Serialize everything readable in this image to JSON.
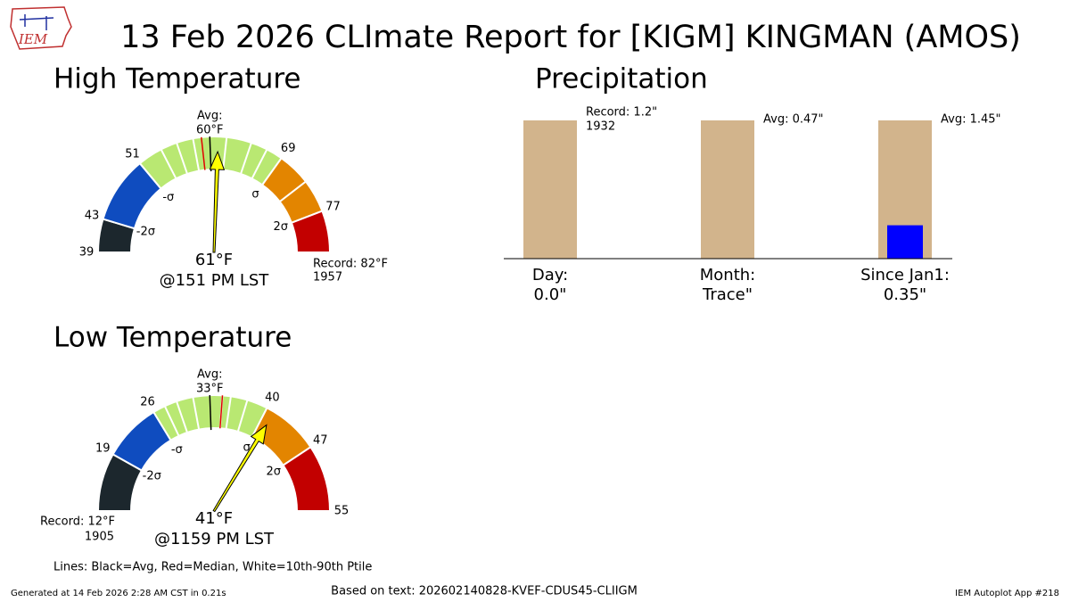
{
  "title": "13 Feb 2026 CLImate Report for [KIGM] KINGMAN (AMOS)",
  "logo": "IEM",
  "note": "Lines: Black=Avg, Red=Median, White=10th-90th Ptile",
  "footer_left": "Generated at 14 Feb 2026 2:28 AM CST in 0.21s",
  "footer_center": "Based on text: 202602140828-KVEF-CDUS45-CLIIGM",
  "footer_right": "IEM Autoplot App #218",
  "chart_data": [
    {
      "type": "gauge",
      "title": "High Temperature",
      "range": [
        39,
        82
      ],
      "ticks": [
        39,
        43,
        51,
        69,
        77
      ],
      "bands": [
        {
          "from": 39,
          "to": 43,
          "color": "#1c272d"
        },
        {
          "from": 43,
          "to": 51,
          "color": "#0f4cbf"
        },
        {
          "from": 51,
          "to": 69,
          "color": "#b9e872"
        },
        {
          "from": 69,
          "to": 77,
          "color": "#e38500"
        },
        {
          "from": 77,
          "to": 82,
          "color": "#c20000"
        }
      ],
      "sigma_labels": [
        {
          "value": 43,
          "label": "-2σ"
        },
        {
          "value": 51,
          "label": "-σ"
        },
        {
          "value": 69,
          "label": "σ"
        },
        {
          "value": 77,
          "label": "2σ"
        }
      ],
      "percentiles": [
        54,
        56,
        58,
        62,
        65,
        67,
        73
      ],
      "median": 59,
      "avg": {
        "label": "Avg:",
        "value": 60,
        "value_label": "60°F"
      },
      "value": 61,
      "value_label": "61°F",
      "time": "@151 PM LST",
      "record": {
        "label": "Record: 82°F",
        "value": 82,
        "year": "1957"
      }
    },
    {
      "type": "gauge",
      "title": "Low Temperature",
      "range": [
        12,
        55
      ],
      "ticks": [
        19,
        26,
        40,
        47,
        55
      ],
      "bands": [
        {
          "from": 12,
          "to": 19,
          "color": "#1c272d"
        },
        {
          "from": 19,
          "to": 26,
          "color": "#0f4cbf"
        },
        {
          "from": 26,
          "to": 40,
          "color": "#b9e872"
        },
        {
          "from": 40,
          "to": 47,
          "color": "#e38500"
        },
        {
          "from": 47,
          "to": 55,
          "color": "#c20000"
        }
      ],
      "sigma_labels": [
        {
          "value": 19,
          "label": "-2σ"
        },
        {
          "value": 26,
          "label": "-σ"
        },
        {
          "value": 40,
          "label": "σ"
        },
        {
          "value": 47,
          "label": "2σ"
        }
      ],
      "percentiles": [
        27.5,
        29,
        31,
        34.5,
        35.5,
        37.5
      ],
      "median": 34.5,
      "avg": {
        "label": "Avg:",
        "value": 33,
        "value_label": "33°F"
      },
      "value": 41,
      "value_label": "41°F",
      "time": "@1159 PM LST",
      "record": {
        "label": "Record: 12°F",
        "value": 12,
        "year": "1905"
      }
    },
    {
      "type": "bar",
      "title": "Precipitation",
      "observed_color": "#0000ff",
      "reference_color": "#d2b48c",
      "groups": [
        {
          "name": "Day:",
          "observed": 0.0,
          "observed_label": "0.0\"",
          "reference": 1.2,
          "reference_label": "Record: 1.2\"",
          "reference_year": "1932"
        },
        {
          "name": "Month:",
          "observed": 0,
          "observed_label": "Trace\"",
          "reference": 0.47,
          "reference_label": "Avg: 0.47\""
        },
        {
          "name": "Since Jan1:",
          "observed": 0.35,
          "observed_label": "0.35\"",
          "reference": 1.45,
          "reference_label": "Avg: 1.45\""
        }
      ]
    }
  ]
}
